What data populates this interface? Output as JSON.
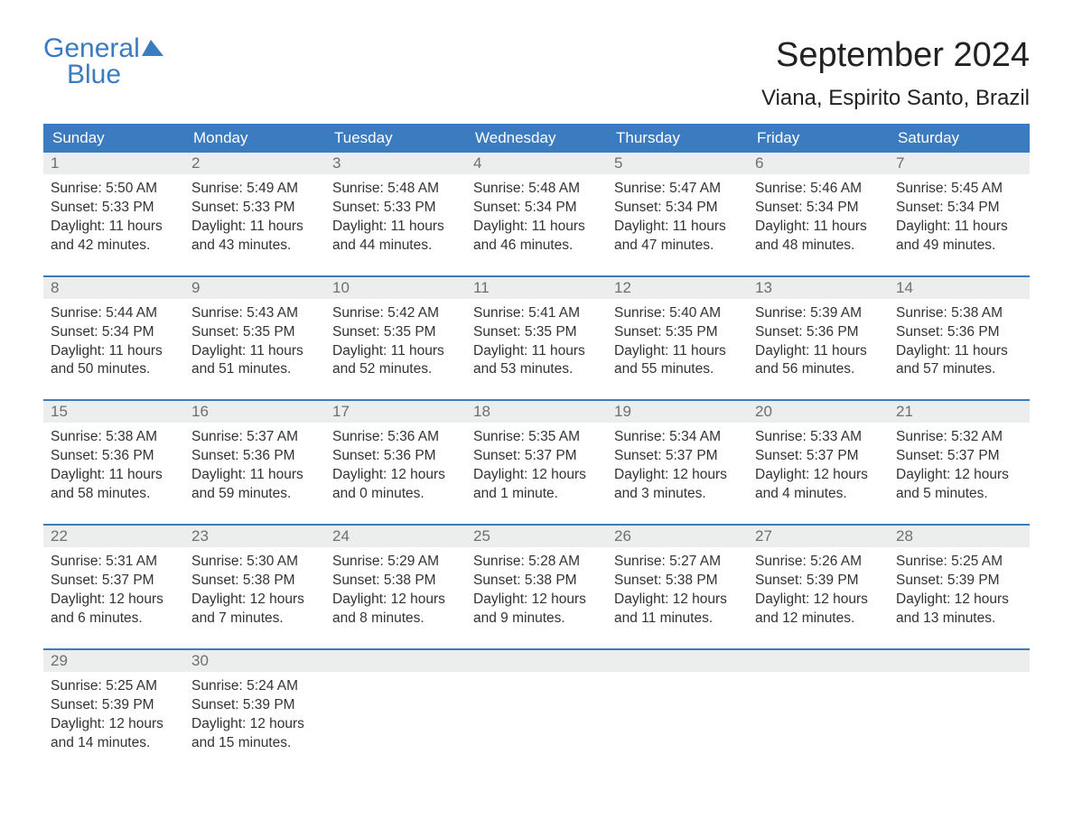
{
  "logo": {
    "line1": "General",
    "line2": "Blue"
  },
  "title": "September 2024",
  "location": "Viana, Espirito Santo, Brazil",
  "colors": {
    "header_bg": "#3b7bbf",
    "header_text": "#ffffff",
    "daynum_bg": "#eceded",
    "daynum_text": "#6f6f6f",
    "body_text": "#333333",
    "page_bg": "#ffffff",
    "week_border": "#3b7bbf"
  },
  "typography": {
    "title_fontsize": 38,
    "location_fontsize": 24,
    "weekday_fontsize": 17,
    "daynum_fontsize": 17,
    "cell_fontsize": 15.5,
    "font_family": "Arial"
  },
  "weekdays": [
    "Sunday",
    "Monday",
    "Tuesday",
    "Wednesday",
    "Thursday",
    "Friday",
    "Saturday"
  ],
  "weeks": [
    [
      {
        "n": "1",
        "sr": "Sunrise: 5:50 AM",
        "ss": "Sunset: 5:33 PM",
        "d1": "Daylight: 11 hours",
        "d2": "and 42 minutes."
      },
      {
        "n": "2",
        "sr": "Sunrise: 5:49 AM",
        "ss": "Sunset: 5:33 PM",
        "d1": "Daylight: 11 hours",
        "d2": "and 43 minutes."
      },
      {
        "n": "3",
        "sr": "Sunrise: 5:48 AM",
        "ss": "Sunset: 5:33 PM",
        "d1": "Daylight: 11 hours",
        "d2": "and 44 minutes."
      },
      {
        "n": "4",
        "sr": "Sunrise: 5:48 AM",
        "ss": "Sunset: 5:34 PM",
        "d1": "Daylight: 11 hours",
        "d2": "and 46 minutes."
      },
      {
        "n": "5",
        "sr": "Sunrise: 5:47 AM",
        "ss": "Sunset: 5:34 PM",
        "d1": "Daylight: 11 hours",
        "d2": "and 47 minutes."
      },
      {
        "n": "6",
        "sr": "Sunrise: 5:46 AM",
        "ss": "Sunset: 5:34 PM",
        "d1": "Daylight: 11 hours",
        "d2": "and 48 minutes."
      },
      {
        "n": "7",
        "sr": "Sunrise: 5:45 AM",
        "ss": "Sunset: 5:34 PM",
        "d1": "Daylight: 11 hours",
        "d2": "and 49 minutes."
      }
    ],
    [
      {
        "n": "8",
        "sr": "Sunrise: 5:44 AM",
        "ss": "Sunset: 5:34 PM",
        "d1": "Daylight: 11 hours",
        "d2": "and 50 minutes."
      },
      {
        "n": "9",
        "sr": "Sunrise: 5:43 AM",
        "ss": "Sunset: 5:35 PM",
        "d1": "Daylight: 11 hours",
        "d2": "and 51 minutes."
      },
      {
        "n": "10",
        "sr": "Sunrise: 5:42 AM",
        "ss": "Sunset: 5:35 PM",
        "d1": "Daylight: 11 hours",
        "d2": "and 52 minutes."
      },
      {
        "n": "11",
        "sr": "Sunrise: 5:41 AM",
        "ss": "Sunset: 5:35 PM",
        "d1": "Daylight: 11 hours",
        "d2": "and 53 minutes."
      },
      {
        "n": "12",
        "sr": "Sunrise: 5:40 AM",
        "ss": "Sunset: 5:35 PM",
        "d1": "Daylight: 11 hours",
        "d2": "and 55 minutes."
      },
      {
        "n": "13",
        "sr": "Sunrise: 5:39 AM",
        "ss": "Sunset: 5:36 PM",
        "d1": "Daylight: 11 hours",
        "d2": "and 56 minutes."
      },
      {
        "n": "14",
        "sr": "Sunrise: 5:38 AM",
        "ss": "Sunset: 5:36 PM",
        "d1": "Daylight: 11 hours",
        "d2": "and 57 minutes."
      }
    ],
    [
      {
        "n": "15",
        "sr": "Sunrise: 5:38 AM",
        "ss": "Sunset: 5:36 PM",
        "d1": "Daylight: 11 hours",
        "d2": "and 58 minutes."
      },
      {
        "n": "16",
        "sr": "Sunrise: 5:37 AM",
        "ss": "Sunset: 5:36 PM",
        "d1": "Daylight: 11 hours",
        "d2": "and 59 minutes."
      },
      {
        "n": "17",
        "sr": "Sunrise: 5:36 AM",
        "ss": "Sunset: 5:36 PM",
        "d1": "Daylight: 12 hours",
        "d2": "and 0 minutes."
      },
      {
        "n": "18",
        "sr": "Sunrise: 5:35 AM",
        "ss": "Sunset: 5:37 PM",
        "d1": "Daylight: 12 hours",
        "d2": "and 1 minute."
      },
      {
        "n": "19",
        "sr": "Sunrise: 5:34 AM",
        "ss": "Sunset: 5:37 PM",
        "d1": "Daylight: 12 hours",
        "d2": "and 3 minutes."
      },
      {
        "n": "20",
        "sr": "Sunrise: 5:33 AM",
        "ss": "Sunset: 5:37 PM",
        "d1": "Daylight: 12 hours",
        "d2": "and 4 minutes."
      },
      {
        "n": "21",
        "sr": "Sunrise: 5:32 AM",
        "ss": "Sunset: 5:37 PM",
        "d1": "Daylight: 12 hours",
        "d2": "and 5 minutes."
      }
    ],
    [
      {
        "n": "22",
        "sr": "Sunrise: 5:31 AM",
        "ss": "Sunset: 5:37 PM",
        "d1": "Daylight: 12 hours",
        "d2": "and 6 minutes."
      },
      {
        "n": "23",
        "sr": "Sunrise: 5:30 AM",
        "ss": "Sunset: 5:38 PM",
        "d1": "Daylight: 12 hours",
        "d2": "and 7 minutes."
      },
      {
        "n": "24",
        "sr": "Sunrise: 5:29 AM",
        "ss": "Sunset: 5:38 PM",
        "d1": "Daylight: 12 hours",
        "d2": "and 8 minutes."
      },
      {
        "n": "25",
        "sr": "Sunrise: 5:28 AM",
        "ss": "Sunset: 5:38 PM",
        "d1": "Daylight: 12 hours",
        "d2": "and 9 minutes."
      },
      {
        "n": "26",
        "sr": "Sunrise: 5:27 AM",
        "ss": "Sunset: 5:38 PM",
        "d1": "Daylight: 12 hours",
        "d2": "and 11 minutes."
      },
      {
        "n": "27",
        "sr": "Sunrise: 5:26 AM",
        "ss": "Sunset: 5:39 PM",
        "d1": "Daylight: 12 hours",
        "d2": "and 12 minutes."
      },
      {
        "n": "28",
        "sr": "Sunrise: 5:25 AM",
        "ss": "Sunset: 5:39 PM",
        "d1": "Daylight: 12 hours",
        "d2": "and 13 minutes."
      }
    ],
    [
      {
        "n": "29",
        "sr": "Sunrise: 5:25 AM",
        "ss": "Sunset: 5:39 PM",
        "d1": "Daylight: 12 hours",
        "d2": "and 14 minutes."
      },
      {
        "n": "30",
        "sr": "Sunrise: 5:24 AM",
        "ss": "Sunset: 5:39 PM",
        "d1": "Daylight: 12 hours",
        "d2": "and 15 minutes."
      },
      null,
      null,
      null,
      null,
      null
    ]
  ]
}
